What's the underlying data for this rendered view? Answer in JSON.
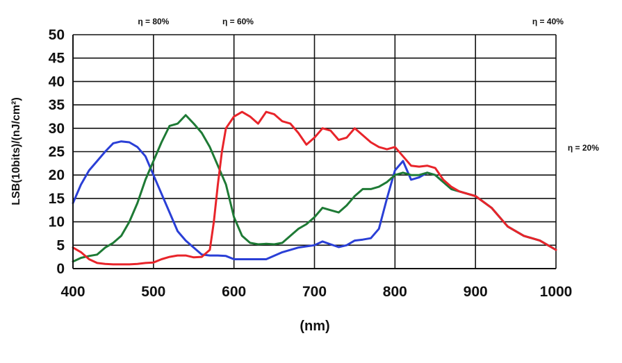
{
  "chart_data": {
    "type": "line",
    "xlabel": "(nm)",
    "ylabel": "LSB(10bits)/(nJ/cm²)",
    "xlim": [
      400,
      1000
    ],
    "ylim": [
      0,
      50
    ],
    "x_ticks": [
      400,
      500,
      600,
      700,
      800,
      900,
      1000
    ],
    "y_ticks": [
      0,
      5,
      10,
      15,
      20,
      25,
      30,
      35,
      40,
      45,
      50
    ],
    "grid": true,
    "legend": "none",
    "annotations": [
      {
        "text": "η = 80%",
        "x": 500,
        "y": 53
      },
      {
        "text": "η = 60%",
        "x": 605,
        "y": 53
      },
      {
        "text": "η = 40%",
        "x": 990,
        "y": 53
      },
      {
        "text": "η = 20%",
        "x": 1034,
        "y": 26
      }
    ],
    "series": [
      {
        "color": "#2a3fd6",
        "x": [
          400,
          410,
          420,
          430,
          440,
          450,
          460,
          470,
          480,
          490,
          500,
          510,
          520,
          530,
          540,
          550,
          560,
          570,
          580,
          590,
          600,
          620,
          640,
          660,
          680,
          700,
          710,
          720,
          730,
          740,
          750,
          760,
          770,
          780,
          790,
          800,
          810,
          815,
          820,
          830,
          840,
          850,
          860,
          870,
          880,
          890,
          900,
          920,
          940,
          960,
          980,
          1000
        ],
        "y": [
          14,
          18,
          21,
          23,
          25,
          26.8,
          27.2,
          27,
          26,
          24,
          20,
          16,
          12,
          8,
          6,
          4.5,
          3,
          2.8,
          2.8,
          2.7,
          2,
          2,
          2,
          3.5,
          4.5,
          5,
          5.8,
          5.2,
          4.6,
          5,
          6,
          6.2,
          6.5,
          8.5,
          15,
          21,
          23,
          21,
          19,
          19.5,
          20.5,
          20,
          18.5,
          17,
          16.5,
          16,
          15.5,
          13,
          9,
          7,
          6,
          4
        ]
      },
      {
        "color": "#1e7a35",
        "x": [
          400,
          410,
          420,
          430,
          440,
          450,
          460,
          470,
          480,
          490,
          500,
          510,
          520,
          530,
          540,
          550,
          560,
          570,
          580,
          590,
          600,
          610,
          620,
          630,
          640,
          650,
          660,
          670,
          680,
          690,
          700,
          710,
          720,
          730,
          740,
          750,
          760,
          770,
          780,
          790,
          800,
          810,
          820,
          830,
          840,
          850,
          860,
          870,
          880,
          890,
          900,
          920,
          940,
          960,
          980,
          1000
        ],
        "y": [
          1.5,
          2.3,
          2.7,
          3,
          4.5,
          5.5,
          7,
          10,
          14,
          19,
          23,
          27,
          30.5,
          31,
          32.8,
          31,
          29,
          26,
          22,
          18,
          11,
          7,
          5.5,
          5.2,
          5.3,
          5.2,
          5.5,
          7,
          8.5,
          9.5,
          11,
          13,
          12.5,
          12,
          13.5,
          15.5,
          17,
          17,
          17.5,
          18.5,
          20,
          20.5,
          20,
          20,
          20.5,
          20,
          18.5,
          17,
          16.5,
          16,
          15.5,
          13,
          9,
          7,
          6,
          4
        ]
      },
      {
        "color": "#e8242a",
        "x": [
          400,
          410,
          420,
          430,
          440,
          450,
          460,
          470,
          480,
          490,
          500,
          510,
          520,
          530,
          540,
          550,
          560,
          570,
          575,
          580,
          585,
          590,
          600,
          610,
          620,
          630,
          640,
          650,
          660,
          670,
          680,
          690,
          700,
          710,
          720,
          730,
          740,
          750,
          760,
          770,
          780,
          790,
          800,
          810,
          820,
          830,
          840,
          850,
          860,
          870,
          880,
          890,
          900,
          920,
          940,
          960,
          980,
          1000
        ],
        "y": [
          4.5,
          3.5,
          2,
          1.2,
          1,
          0.9,
          0.9,
          0.9,
          1,
          1.2,
          1.3,
          2,
          2.5,
          2.8,
          2.8,
          2.4,
          2.5,
          4,
          10,
          18,
          25,
          30,
          32.5,
          33.5,
          32.5,
          31,
          33.5,
          33,
          31.5,
          31,
          29,
          26.5,
          28,
          30,
          29.5,
          27.5,
          28,
          30,
          28.5,
          27,
          26,
          25.5,
          26,
          24,
          22,
          21.8,
          22,
          21.5,
          19,
          17.5,
          16.5,
          16,
          15.5,
          13,
          9,
          7,
          6,
          4
        ]
      }
    ]
  }
}
